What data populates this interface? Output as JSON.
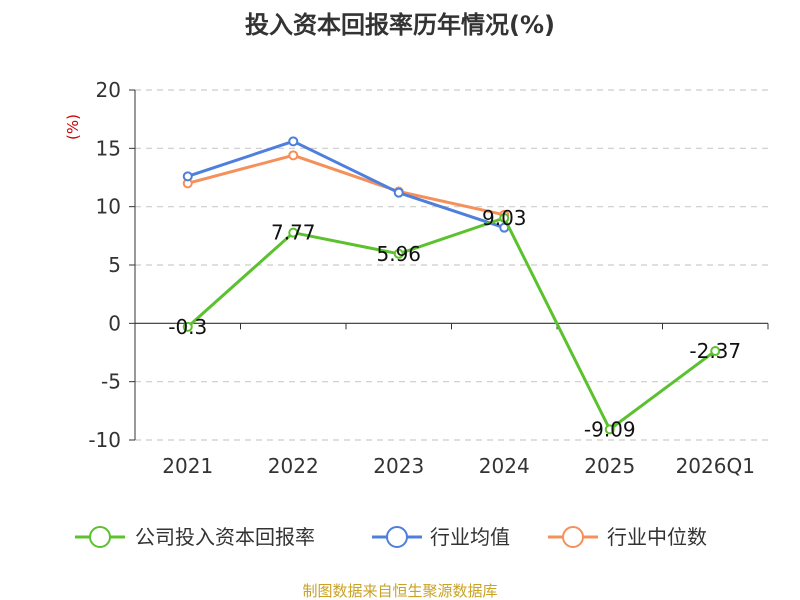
{
  "chart_data": {
    "type": "line",
    "title": "投入资本回报率历年情况(%)",
    "ylabel": "(%)",
    "ylim": [
      -10,
      20
    ],
    "yticks": [
      20,
      15,
      10,
      5,
      0,
      -5,
      -10
    ],
    "categories": [
      "2021",
      "2022",
      "2023",
      "2024",
      "2025",
      "2026Q1"
    ],
    "grid": true,
    "legend_position": "bottom",
    "series": [
      {
        "name": "公司投入资本回报率",
        "color": "#5cc12e",
        "values": [
          -0.3,
          7.77,
          5.96,
          9.03,
          -9.09,
          -2.37
        ],
        "labels": [
          "-0.3",
          "7.77",
          "5.96",
          "9.03",
          "-9.09",
          "-2.37"
        ]
      },
      {
        "name": "行业均值",
        "color": "#4f7fdc",
        "values": [
          12.6,
          15.6,
          11.2,
          8.2,
          null,
          null
        ]
      },
      {
        "name": "行业中位数",
        "color": "#f5905a",
        "values": [
          12.0,
          14.4,
          11.3,
          9.3,
          null,
          null
        ]
      }
    ]
  },
  "source_text": "制图数据来自恒生聚源数据库"
}
